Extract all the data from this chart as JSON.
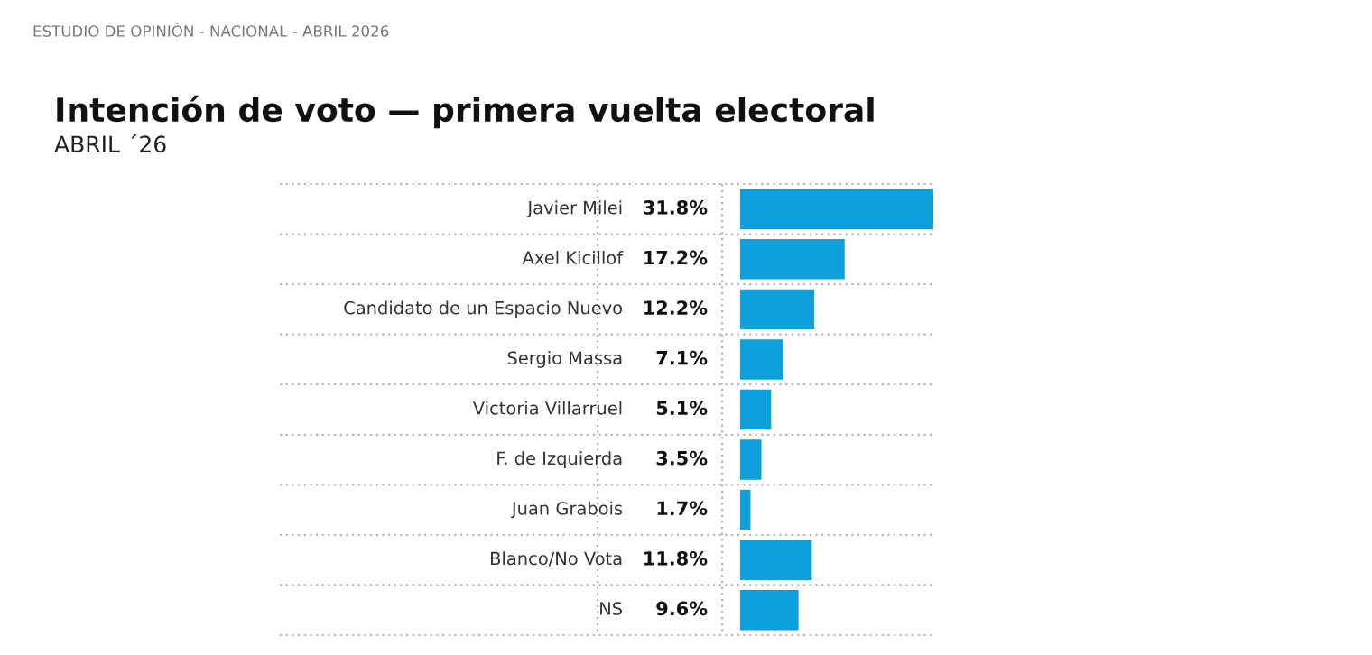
{
  "chart_data": {
    "type": "bar",
    "orientation": "horizontal",
    "title": "Intención de voto — primera vuelta electoral",
    "subtitle": "ABRIL ´26",
    "annotations": [
      "ESTUDIO DE OPINIÓN - NACIONAL - ABRIL 2026"
    ],
    "categories": [
      "Javier Milei",
      "Axel Kicillof",
      "Candidato de un Espacio Nuevo",
      "Sergio Massa",
      "Victoria Villarruel",
      "F. de Izquierda",
      "Juan Grabois",
      "Blanco/No Vota",
      "NS"
    ],
    "values": [
      31.8,
      17.2,
      12.2,
      7.1,
      5.1,
      3.5,
      1.7,
      11.8,
      9.6
    ],
    "value_labels": [
      "31.8%",
      "17.2%",
      "12.2%",
      "7.1%",
      "5.1%",
      "3.5%",
      "1.7%",
      "11.8%",
      "9.6%"
    ],
    "color": "#0ea0dc",
    "grid": true
  }
}
